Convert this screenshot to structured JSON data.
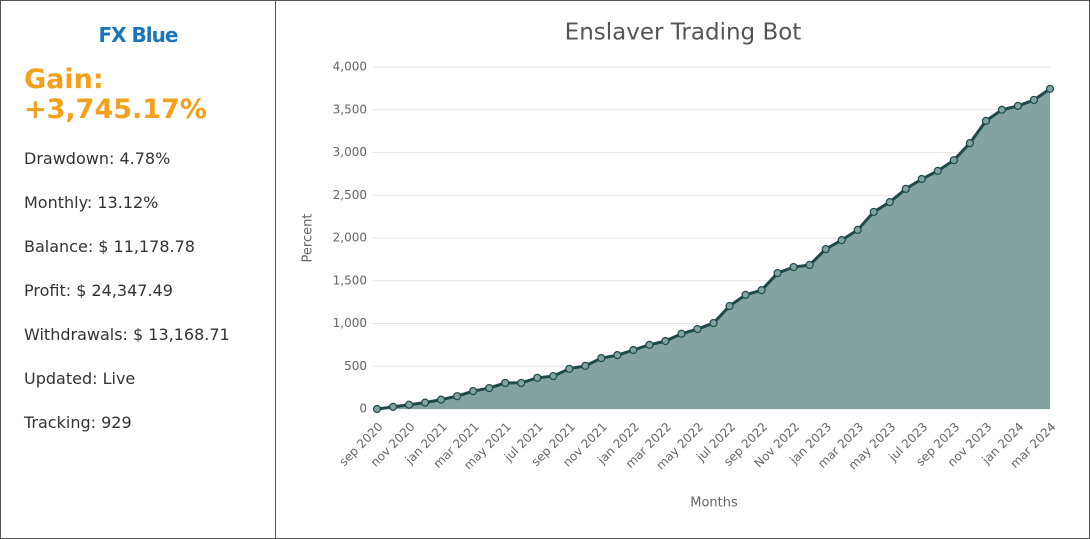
{
  "sidebar": {
    "logo": "FX Blue",
    "gain_label": "Gain:",
    "gain_value": "+3,745.17%",
    "stats": [
      "Drawdown: 4.78%",
      "Monthly: 13.12%",
      "Balance: $ 11,178.78",
      "Profit: $ 24,347.49",
      "Withdrawals: $ 13,168.71",
      "Updated: Live",
      "Tracking: 929"
    ]
  },
  "chart_data": {
    "type": "area",
    "title": "Enslaver Trading Bot",
    "x_label": "Months",
    "y_label": "Percent",
    "categories": [
      "sep 2020",
      null,
      "nov 2020",
      null,
      "jan 2021",
      null,
      "mar 2021",
      null,
      "may 2021",
      null,
      "jul 2021",
      null,
      "sep 2021",
      null,
      "nov 2021",
      null,
      "jan 2022",
      null,
      "mar 2022",
      null,
      "may 2022",
      null,
      "jul 2022",
      null,
      "sep 2022",
      null,
      "Nov 2022",
      null,
      "jan 2023",
      null,
      "mar 2023",
      null,
      "may 2023",
      null,
      "jul 2023",
      null,
      "sep 2023",
      null,
      "nov 2023",
      null,
      "jan 2024",
      null,
      "mar 2024"
    ],
    "values": [
      0,
      25,
      50,
      75,
      110,
      150,
      210,
      245,
      305,
      305,
      365,
      385,
      470,
      505,
      595,
      630,
      690,
      750,
      795,
      880,
      935,
      1005,
      1205,
      1335,
      1390,
      1590,
      1660,
      1685,
      1870,
      1975,
      2095,
      2305,
      2420,
      2575,
      2690,
      2785,
      2910,
      3110,
      3370,
      3500,
      3545,
      3615,
      3745
    ],
    "color": "#82a39f",
    "line_color": "#1d4a48",
    "ylim": [
      0,
      4000
    ],
    "yticks": [
      0,
      500,
      {
        "value": 1000,
        "label": "1,000"
      },
      {
        "value": 1500,
        "label": "1,500"
      },
      {
        "value": 2000,
        "label": "2,000"
      },
      {
        "value": 2500,
        "label": "2,500"
      },
      {
        "value": 3000,
        "label": "3,000"
      },
      {
        "value": 3500,
        "label": "3,500"
      },
      {
        "value": 4000,
        "label": "4,000"
      }
    ],
    "grid": true
  }
}
